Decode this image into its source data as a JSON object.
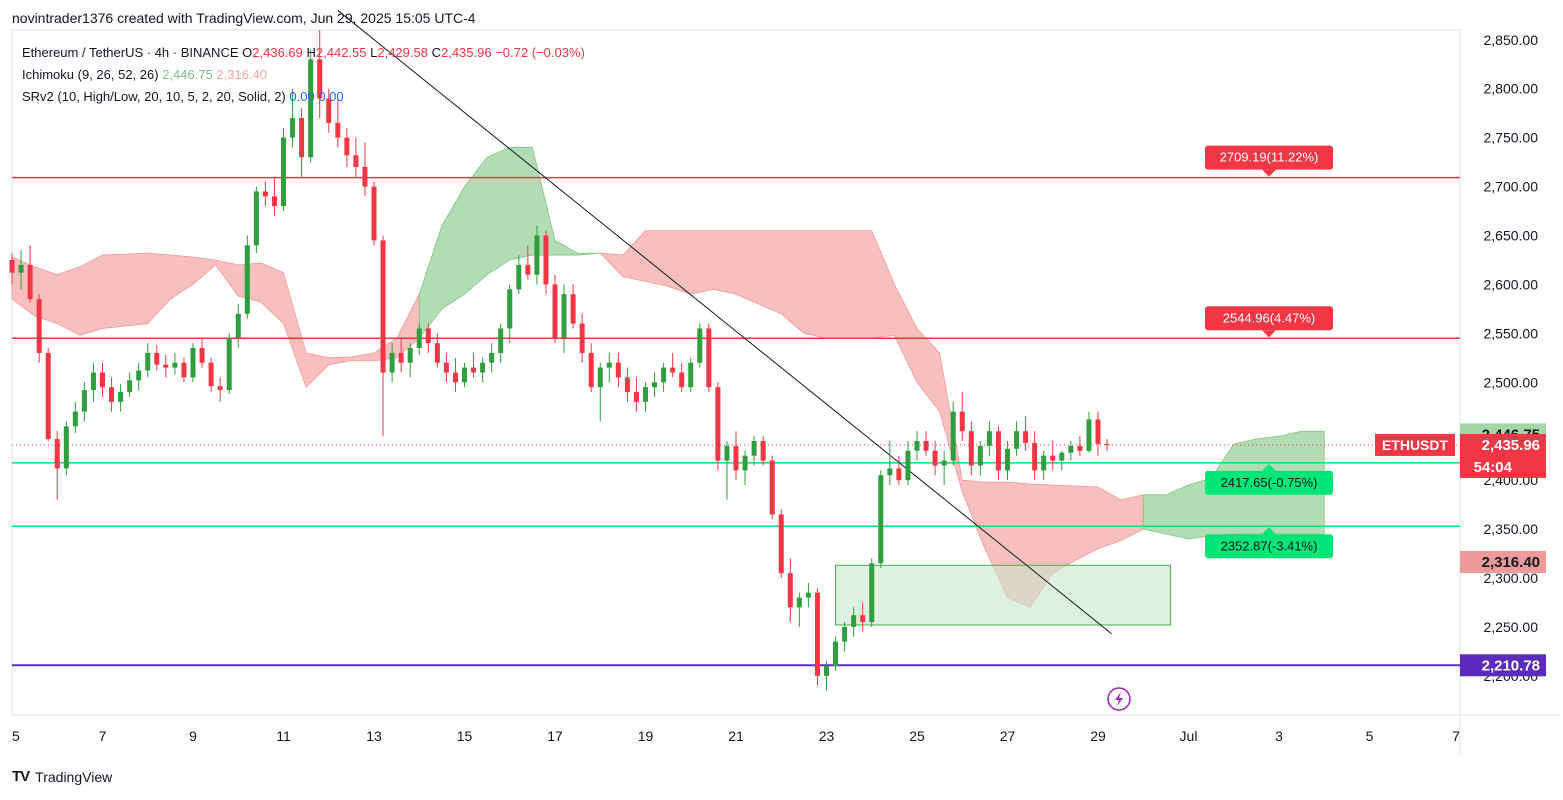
{
  "header": {
    "attribution": "novintrader1376 created with TradingView.com, Jun 29, 2025 15:05 UTC-4"
  },
  "legend": {
    "symbol": "Ethereum / TetherUS · 4h · BINANCE",
    "o_label": "O",
    "o_value": "2,436.69",
    "h_label": "H",
    "h_value": "2,442.55",
    "l_label": "L",
    "l_value": "2,429.58",
    "c_label": "C",
    "c_value": "2,435.96",
    "change": "−0.72 (−0.03%)",
    "ichimoku_label": "Ichimoku (9, 26, 52, 26)",
    "ichimoku_v1": "2,446.75",
    "ichimoku_v2": "2,316.40",
    "srv2_label": "SRv2 (10, High/Low, 20, 10, 5, 2, 20, Solid, 2)",
    "srv2_v1": "0.00",
    "srv2_v2": "0.00"
  },
  "footer": {
    "brand": "TradingView",
    "logo": "TV"
  },
  "colors": {
    "up": "#22ab94",
    "up_body": "#26a69a",
    "down": "#f23645",
    "candle_up": "#2e9e3f",
    "candle_down": "#f23645",
    "cloud_green": "#a5d6a7",
    "cloud_red": "#f7b4b4",
    "res_line": "#f23645",
    "sup_line": "#00e676",
    "purple": "#5b2bbd",
    "trend": "#131722",
    "box": "#c8e6c9"
  },
  "chart_data": {
    "type": "candlestick",
    "symbol_tag": "ETHUSDT",
    "yaxis": {
      "ticks": [
        "2,850.00",
        "2,800.00",
        "2,750.00",
        "2,700.00",
        "2,650.00",
        "2,600.00",
        "2,550.00",
        "2,500.00",
        "2,450.00",
        "2,400.00",
        "2,350.00",
        "2,300.00",
        "2,250.00",
        "2,200.00"
      ],
      "tick_values": [
        2850,
        2800,
        2750,
        2700,
        2650,
        2600,
        2550,
        2500,
        2450,
        2400,
        2350,
        2300,
        2250,
        2200
      ],
      "range": [
        2160,
        2860
      ]
    },
    "xaxis": {
      "labels": [
        "5",
        "7",
        "9",
        "11",
        "13",
        "15",
        "17",
        "19",
        "21",
        "23",
        "25",
        "27",
        "29",
        "Jul",
        "3",
        "5",
        "7"
      ],
      "label_days": [
        5,
        7,
        9,
        11,
        13,
        15,
        17,
        19,
        21,
        23,
        25,
        27,
        29,
        31,
        33,
        35,
        37
      ],
      "day_range": [
        5,
        37
      ]
    },
    "levels": [
      {
        "price": 2709.19,
        "label": "2709.19(11.22%)",
        "kind": "resistance"
      },
      {
        "price": 2544.96,
        "label": "2544.96(4.47%)",
        "kind": "resistance"
      },
      {
        "price": 2417.65,
        "label": "2417.65(-0.75%)",
        "kind": "support"
      },
      {
        "price": 2352.87,
        "label": "2352.87(-3.41%)",
        "kind": "support"
      },
      {
        "price": 2210.78,
        "label": "2,210.78",
        "kind": "purple"
      }
    ],
    "price_tags": {
      "last": "2,435.96",
      "countdown": "54:04",
      "cloud_top": "2,446.75",
      "cloud_bottom": "2,316.40"
    },
    "last_price": 2435.96,
    "cloud_top_price": 2446.75,
    "cloud_bottom_price": 2316.4,
    "trendline": {
      "from": {
        "day": 12.2,
        "price": 2880
      },
      "to": {
        "day": 29.3,
        "price": 2243
      }
    },
    "demand_box": {
      "day_start": 23.2,
      "day_end": 30.6,
      "price_top": 2313,
      "price_bottom": 2252
    },
    "cloud": [
      [
        5.0,
        2628,
        2585
      ],
      [
        5.5,
        2618,
        2568
      ],
      [
        6.0,
        2610,
        2560
      ],
      [
        6.5,
        2618,
        2548
      ],
      [
        7.0,
        2630,
        2555
      ],
      [
        8.0,
        2632,
        2560
      ],
      [
        8.5,
        2630,
        2585
      ],
      [
        9.0,
        2628,
        2600
      ],
      [
        9.5,
        2625,
        2620
      ],
      [
        10.0,
        2620,
        2588
      ],
      [
        10.5,
        2622,
        2582
      ],
      [
        11.0,
        2612,
        2560
      ],
      [
        11.5,
        2530,
        2495
      ],
      [
        12.0,
        2525,
        2518
      ],
      [
        12.5,
        2526,
        2522
      ],
      [
        13.0,
        2530,
        2522
      ],
      [
        13.5,
        2545,
        2525
      ],
      [
        14.0,
        2590,
        2545
      ],
      [
        14.5,
        2660,
        2575
      ],
      [
        15.0,
        2700,
        2590
      ],
      [
        15.5,
        2730,
        2610
      ],
      [
        16.0,
        2740,
        2625
      ],
      [
        16.5,
        2740,
        2630
      ],
      [
        17.0,
        2645,
        2630
      ],
      [
        17.5,
        2632,
        2630
      ],
      [
        18.0,
        2632,
        2632
      ],
      [
        18.5,
        2630,
        2608
      ],
      [
        19.0,
        2655,
        2603
      ],
      [
        19.5,
        2655,
        2598
      ],
      [
        20.0,
        2655,
        2590
      ],
      [
        20.5,
        2655,
        2595
      ],
      [
        21.0,
        2655,
        2590
      ],
      [
        21.5,
        2655,
        2580
      ],
      [
        22.0,
        2655,
        2570
      ],
      [
        22.5,
        2655,
        2550
      ],
      [
        23.0,
        2655,
        2545
      ],
      [
        23.5,
        2655,
        2545
      ],
      [
        24.0,
        2655,
        2545
      ],
      [
        24.5,
        2600,
        2548
      ],
      [
        25.0,
        2555,
        2500
      ],
      [
        25.5,
        2530,
        2470
      ],
      [
        26.0,
        2400,
        2388
      ],
      [
        26.5,
        2398,
        2330
      ],
      [
        27.0,
        2398,
        2280
      ],
      [
        27.5,
        2396,
        2270
      ],
      [
        28.0,
        2395,
        2305
      ],
      [
        28.5,
        2394,
        2318
      ],
      [
        29.0,
        2393,
        2330
      ],
      [
        29.5,
        2380,
        2338
      ],
      [
        30.0,
        2385,
        2350
      ],
      [
        30.5,
        2385,
        2345
      ],
      [
        31.0,
        2395,
        2340
      ],
      [
        31.5,
        2402,
        2343
      ],
      [
        32.0,
        2437,
        2345
      ],
      [
        32.5,
        2442,
        2345
      ],
      [
        33.0,
        2445,
        2345
      ],
      [
        33.5,
        2450,
        2345
      ],
      [
        34.0,
        2450,
        2345
      ]
    ],
    "candles": [
      [
        5.0,
        2625,
        2632,
        2600,
        2612
      ],
      [
        5.2,
        2612,
        2635,
        2595,
        2620
      ],
      [
        5.4,
        2620,
        2640,
        2582,
        2585
      ],
      [
        5.6,
        2585,
        2590,
        2520,
        2530
      ],
      [
        5.8,
        2530,
        2535,
        2440,
        2442
      ],
      [
        6.0,
        2442,
        2450,
        2380,
        2412
      ],
      [
        6.2,
        2412,
        2460,
        2405,
        2455
      ],
      [
        6.4,
        2455,
        2480,
        2448,
        2470
      ],
      [
        6.6,
        2470,
        2500,
        2460,
        2492
      ],
      [
        6.8,
        2492,
        2520,
        2480,
        2510
      ],
      [
        7.0,
        2510,
        2520,
        2485,
        2495
      ],
      [
        7.2,
        2495,
        2505,
        2470,
        2480
      ],
      [
        7.4,
        2480,
        2498,
        2470,
        2490
      ],
      [
        7.6,
        2490,
        2510,
        2485,
        2502
      ],
      [
        7.8,
        2502,
        2520,
        2492,
        2512
      ],
      [
        8.0,
        2512,
        2540,
        2505,
        2530
      ],
      [
        8.2,
        2530,
        2538,
        2512,
        2518
      ],
      [
        8.4,
        2518,
        2528,
        2505,
        2515
      ],
      [
        8.6,
        2515,
        2530,
        2508,
        2520
      ],
      [
        8.8,
        2520,
        2525,
        2500,
        2505
      ],
      [
        9.0,
        2505,
        2540,
        2500,
        2535
      ],
      [
        9.2,
        2535,
        2545,
        2515,
        2520
      ],
      [
        9.4,
        2520,
        2525,
        2490,
        2496
      ],
      [
        9.6,
        2496,
        2505,
        2480,
        2492
      ],
      [
        9.8,
        2492,
        2550,
        2488,
        2545
      ],
      [
        10.0,
        2545,
        2580,
        2535,
        2570
      ],
      [
        10.2,
        2570,
        2650,
        2565,
        2640
      ],
      [
        10.4,
        2640,
        2700,
        2632,
        2695
      ],
      [
        10.6,
        2695,
        2705,
        2680,
        2690
      ],
      [
        10.8,
        2690,
        2710,
        2670,
        2680
      ],
      [
        11.0,
        2680,
        2760,
        2675,
        2750
      ],
      [
        11.2,
        2750,
        2800,
        2740,
        2770
      ],
      [
        11.4,
        2770,
        2780,
        2710,
        2730
      ],
      [
        11.6,
        2730,
        2840,
        2725,
        2830
      ],
      [
        11.8,
        2830,
        2860,
        2770,
        2790
      ],
      [
        12.0,
        2790,
        2800,
        2755,
        2765
      ],
      [
        12.2,
        2765,
        2790,
        2740,
        2750
      ],
      [
        12.4,
        2750,
        2760,
        2720,
        2732
      ],
      [
        12.6,
        2732,
        2750,
        2710,
        2720
      ],
      [
        12.8,
        2720,
        2745,
        2690,
        2700
      ],
      [
        13.0,
        2700,
        2705,
        2640,
        2645
      ],
      [
        13.2,
        2645,
        2650,
        2445,
        2510
      ],
      [
        13.4,
        2510,
        2540,
        2500,
        2530
      ],
      [
        13.6,
        2530,
        2545,
        2510,
        2520
      ],
      [
        13.8,
        2520,
        2540,
        2505,
        2535
      ],
      [
        14.0,
        2535,
        2560,
        2528,
        2555
      ],
      [
        14.2,
        2555,
        2560,
        2530,
        2540
      ],
      [
        14.4,
        2540,
        2550,
        2515,
        2520
      ],
      [
        14.6,
        2520,
        2530,
        2500,
        2510
      ],
      [
        14.8,
        2510,
        2525,
        2490,
        2500
      ],
      [
        15.0,
        2500,
        2520,
        2495,
        2515
      ],
      [
        15.2,
        2515,
        2530,
        2505,
        2510
      ],
      [
        15.4,
        2510,
        2525,
        2500,
        2520
      ],
      [
        15.6,
        2520,
        2540,
        2510,
        2530
      ],
      [
        15.8,
        2530,
        2560,
        2520,
        2555
      ],
      [
        16.0,
        2555,
        2600,
        2540,
        2595
      ],
      [
        16.2,
        2595,
        2630,
        2590,
        2620
      ],
      [
        16.4,
        2620,
        2640,
        2605,
        2610
      ],
      [
        16.6,
        2610,
        2660,
        2600,
        2650
      ],
      [
        16.8,
        2650,
        2655,
        2590,
        2600
      ],
      [
        17.0,
        2600,
        2610,
        2540,
        2545
      ],
      [
        17.2,
        2545,
        2600,
        2530,
        2590
      ],
      [
        17.4,
        2590,
        2600,
        2555,
        2560
      ],
      [
        17.6,
        2560,
        2570,
        2520,
        2530
      ],
      [
        17.8,
        2530,
        2540,
        2490,
        2495
      ],
      [
        18.0,
        2495,
        2520,
        2460,
        2515
      ],
      [
        18.2,
        2515,
        2530,
        2500,
        2520
      ],
      [
        18.4,
        2520,
        2530,
        2495,
        2505
      ],
      [
        18.6,
        2505,
        2515,
        2480,
        2490
      ],
      [
        18.8,
        2490,
        2505,
        2470,
        2480
      ],
      [
        19.0,
        2480,
        2500,
        2470,
        2495
      ],
      [
        19.2,
        2495,
        2510,
        2485,
        2500
      ],
      [
        19.4,
        2500,
        2520,
        2490,
        2515
      ],
      [
        19.6,
        2515,
        2530,
        2505,
        2510
      ],
      [
        19.8,
        2510,
        2520,
        2490,
        2495
      ],
      [
        20.0,
        2495,
        2525,
        2490,
        2520
      ],
      [
        20.2,
        2520,
        2560,
        2515,
        2555
      ],
      [
        20.4,
        2555,
        2560,
        2490,
        2495
      ],
      [
        20.6,
        2495,
        2500,
        2410,
        2420
      ],
      [
        20.8,
        2420,
        2440,
        2380,
        2435
      ],
      [
        21.0,
        2435,
        2450,
        2400,
        2410
      ],
      [
        21.2,
        2410,
        2430,
        2395,
        2425
      ],
      [
        21.4,
        2425,
        2445,
        2415,
        2440
      ],
      [
        21.6,
        2440,
        2445,
        2415,
        2420
      ],
      [
        21.8,
        2420,
        2425,
        2360,
        2365
      ],
      [
        22.0,
        2365,
        2370,
        2300,
        2305
      ],
      [
        22.2,
        2305,
        2320,
        2255,
        2270
      ],
      [
        22.4,
        2270,
        2285,
        2250,
        2280
      ],
      [
        22.6,
        2280,
        2295,
        2270,
        2285
      ],
      [
        22.8,
        2285,
        2290,
        2190,
        2200
      ],
      [
        23.0,
        2200,
        2215,
        2185,
        2210
      ],
      [
        23.2,
        2210,
        2240,
        2205,
        2235
      ],
      [
        23.4,
        2235,
        2255,
        2225,
        2250
      ],
      [
        23.6,
        2250,
        2270,
        2240,
        2262
      ],
      [
        23.8,
        2262,
        2275,
        2245,
        2255
      ],
      [
        24.0,
        2255,
        2320,
        2250,
        2315
      ],
      [
        24.2,
        2315,
        2410,
        2310,
        2405
      ],
      [
        24.4,
        2405,
        2440,
        2395,
        2412
      ],
      [
        24.6,
        2412,
        2425,
        2395,
        2400
      ],
      [
        24.8,
        2400,
        2440,
        2395,
        2430
      ],
      [
        25.0,
        2430,
        2450,
        2420,
        2440
      ],
      [
        25.2,
        2440,
        2450,
        2425,
        2430
      ],
      [
        25.4,
        2430,
        2440,
        2405,
        2415
      ],
      [
        25.6,
        2415,
        2430,
        2395,
        2420
      ],
      [
        25.8,
        2420,
        2480,
        2415,
        2470
      ],
      [
        26.0,
        2470,
        2490,
        2440,
        2450
      ],
      [
        26.2,
        2450,
        2460,
        2405,
        2415
      ],
      [
        26.4,
        2415,
        2440,
        2405,
        2435
      ],
      [
        26.6,
        2435,
        2460,
        2425,
        2450
      ],
      [
        26.8,
        2450,
        2455,
        2400,
        2410
      ],
      [
        27.0,
        2410,
        2440,
        2400,
        2432
      ],
      [
        27.2,
        2432,
        2460,
        2425,
        2450
      ],
      [
        27.4,
        2450,
        2465,
        2430,
        2438
      ],
      [
        27.6,
        2438,
        2450,
        2400,
        2410
      ],
      [
        27.8,
        2410,
        2430,
        2400,
        2425
      ],
      [
        28.0,
        2425,
        2440,
        2410,
        2420
      ],
      [
        28.2,
        2420,
        2430,
        2410,
        2428
      ],
      [
        28.4,
        2428,
        2440,
        2420,
        2435
      ],
      [
        28.6,
        2435,
        2445,
        2425,
        2430
      ],
      [
        28.8,
        2430,
        2470,
        2428,
        2462
      ],
      [
        29.0,
        2462,
        2470,
        2425,
        2437
      ],
      [
        29.2,
        2437,
        2442,
        2430,
        2436
      ]
    ]
  }
}
